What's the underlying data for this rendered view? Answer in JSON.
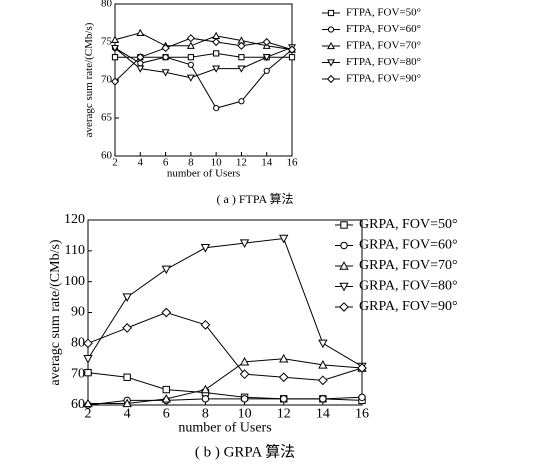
{
  "chart_data": [
    {
      "type": "line",
      "caption": "( a ) FTPA 算法",
      "x_label": "number of Users",
      "y_label": "averagc sum rate/(CMb/s)",
      "x": [
        2,
        4,
        6,
        8,
        10,
        12,
        14,
        16
      ],
      "xlim": [
        2,
        16
      ],
      "xticks": [
        2,
        4,
        6,
        8,
        10,
        12,
        14,
        16
      ],
      "ylim": [
        60,
        80
      ],
      "yticks": [
        60,
        65,
        70,
        75,
        80
      ],
      "series": [
        {
          "name": "FTPA, FOV=50°",
          "color": "#000000",
          "marker": "square",
          "values": [
            73,
            73,
            73,
            73,
            73.5,
            73,
            73,
            73
          ]
        },
        {
          "name": "FTPA, FOV=60°",
          "color": "#000000",
          "marker": "circle",
          "values": [
            74.2,
            72.2,
            73,
            72,
            66.3,
            67.2,
            71.2,
            74
          ]
        },
        {
          "name": "FTPA, FOV=70°",
          "color": "#000000",
          "marker": "triangle-up",
          "values": [
            75.3,
            76.2,
            74.5,
            74.5,
            75.8,
            75.2,
            74.5,
            74
          ]
        },
        {
          "name": "FTPA, FOV=80°",
          "color": "#000000",
          "marker": "triangle-down",
          "values": [
            74.2,
            71.5,
            71,
            70.3,
            71.5,
            71.5,
            73,
            74.3
          ]
        },
        {
          "name": "FTPA, FOV=90°",
          "color": "#000000",
          "marker": "diamond",
          "values": [
            69.8,
            73,
            74.2,
            75.5,
            75,
            74.5,
            75,
            74
          ]
        }
      ]
    },
    {
      "type": "line",
      "caption": "( b ) GRPA 算法",
      "x_label": "number of Users",
      "y_label": "averagc sum rate/(CMb/s)",
      "x": [
        2,
        4,
        6,
        8,
        10,
        12,
        14,
        16
      ],
      "xlim": [
        2,
        16
      ],
      "xticks": [
        2,
        4,
        6,
        8,
        10,
        12,
        14,
        16
      ],
      "ylim": [
        60,
        120
      ],
      "yticks": [
        60,
        70,
        80,
        90,
        100,
        110,
        120
      ],
      "series": [
        {
          "name": "GRPA, FOV=50°",
          "color": "#000000",
          "marker": "square",
          "values": [
            70.5,
            69,
            65,
            64,
            62.5,
            62,
            62,
            61.5
          ]
        },
        {
          "name": "GRPA, FOV=60°",
          "color": "#000000",
          "marker": "circle",
          "values": [
            60,
            61.5,
            61.5,
            62,
            62,
            62,
            62,
            62.5
          ]
        },
        {
          "name": "GRPA, FOV=70°",
          "color": "#000000",
          "marker": "triangle-up",
          "values": [
            60.5,
            60.5,
            62,
            65,
            74,
            75,
            73,
            72
          ]
        },
        {
          "name": "GRPA, FOV=80°",
          "color": "#000000",
          "marker": "triangle-down",
          "values": [
            75,
            95,
            104,
            111,
            112.5,
            114,
            80,
            72.5
          ]
        },
        {
          "name": "GRPA, FOV=90°",
          "color": "#000000",
          "marker": "diamond",
          "values": [
            80,
            85,
            90,
            86,
            70,
            69,
            68,
            72
          ]
        }
      ]
    }
  ]
}
